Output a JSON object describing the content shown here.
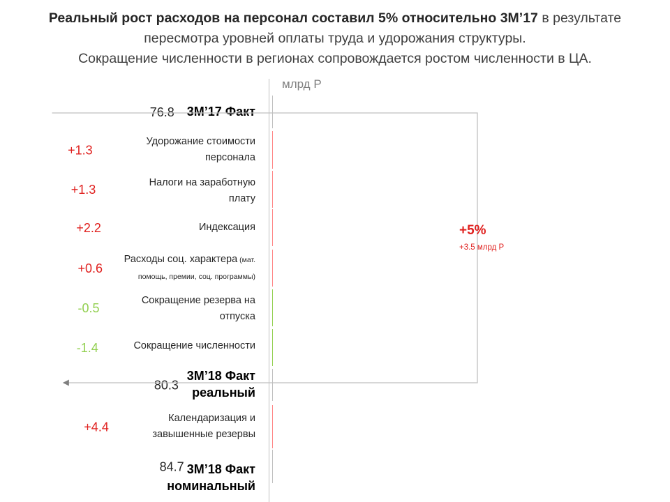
{
  "title": {
    "line1_bold": "Реальный рост расходов на персонал составил 5% относительно 3M’17",
    "line1_rest": " в результате",
    "line2": "пересмотра уровней оплаты труда и удорожания структуры.",
    "line3": "Сокращение численности в регионах сопровождается ростом численности в ЦА."
  },
  "unit": "млрд Р",
  "growth": {
    "percent": "+5%",
    "abs": "+3.5 млрд Р"
  },
  "colors": {
    "total": "#bfbfbf",
    "increase": "#ff8585",
    "decrease": "#92d050",
    "increase_label": "#e0201e",
    "decrease_label": "#92d050",
    "bracket": "#bfbfbf",
    "arrow": "#7f7f7f"
  },
  "labels": {
    "c0": "3M’17 Факт",
    "c1a": "Удорожание стоимости",
    "c1b": "персонала",
    "c2a": "Налоги на заработную",
    "c2b": "плату",
    "c3": "Индексация",
    "c4a": "Расходы соц. характера",
    "c4s": " (мат.",
    "c4b": "помощь, премии, соц. программы)",
    "c5a": "Сокращение резерва на",
    "c5b": "отпуска",
    "c6": "Сокращение численности",
    "c7a": "3M’18 Факт",
    "c7b": "реальный",
    "c8a": "Календаризация и",
    "c8b": "завышенные резервы",
    "c9a": "3M’18 Факт",
    "c9b": "номинальный"
  },
  "chart_data": {
    "type": "bar",
    "subtype": "waterfall",
    "title": "Реальный рост расходов на персонал составил 5% относительно 3M’17 в результате пересмотра уровней оплаты труда и удорожания структуры. Сокращение численности в регионах сопровождается ростом численности в ЦА.",
    "unit": "млрд Р",
    "categories": [
      "3M’17 Факт",
      "Удорожание стоимости персонала",
      "Налоги на заработную плату",
      "Индексация",
      "Расходы соц. характера (мат. помощь, премии, соц. программы)",
      "Сокращение резерва на отпуска",
      "Сокращение численности",
      "3M’18 Факт реальный",
      "Календаризация и завышенные резервы",
      "3M’18 Факт номинальный"
    ],
    "values": [
      76.8,
      1.3,
      1.3,
      2.2,
      0.6,
      -0.5,
      -1.4,
      80.3,
      4.4,
      84.7
    ],
    "kinds": [
      "total",
      "delta",
      "delta",
      "delta",
      "delta",
      "delta",
      "delta",
      "total",
      "delta",
      "total"
    ],
    "value_labels": [
      "76.8",
      "+1.3",
      "+1.3",
      "+2.2",
      "+0.6",
      "-0.5",
      "-1.4",
      "80.3",
      "+4.4",
      "84.7"
    ],
    "annotation": {
      "from": "3M’17 Факт",
      "to": "3M’18 Факт реальный",
      "text": "+5%",
      "subtext": "+3.5 млрд Р"
    }
  }
}
